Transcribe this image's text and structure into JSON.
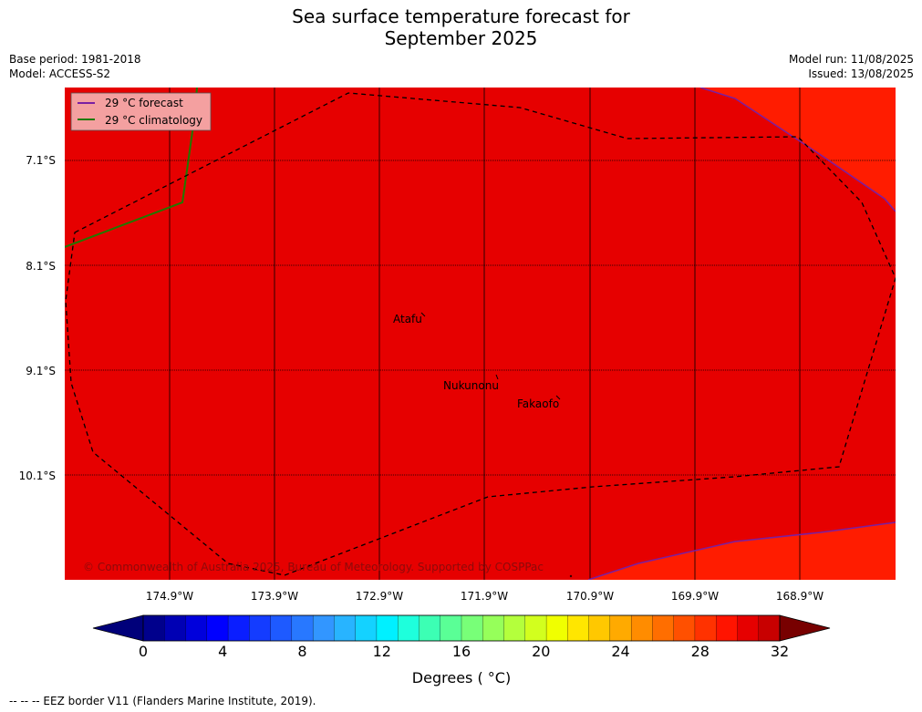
{
  "title": {
    "line1": "Sea surface temperature forecast for",
    "line2": "September 2025"
  },
  "meta": {
    "base_period": "Base period: 1981-2018",
    "model": "Model: ACCESS-S2",
    "model_run": "Model run: 11/08/2025",
    "issued": "Issued: 13/08/2025"
  },
  "legend": {
    "forecast": "29 °C  forecast",
    "climatology": "29 °C  climatology"
  },
  "colors": {
    "sea_main": "#e60000",
    "sea_warm": "#ff1c00",
    "forecast_line": "#7a1fa2",
    "climatology_line": "#1f7a00",
    "legend_bg": "#f4a0a0"
  },
  "map": {
    "lat_labels": [
      "7.1°S",
      "8.1°S",
      "9.1°S",
      "10.1°S"
    ],
    "lon_labels": [
      "174.9°W",
      "173.9°W",
      "172.9°W",
      "171.9°W",
      "170.9°W",
      "169.9°W",
      "168.9°W"
    ],
    "places": [
      "Atafu",
      "Nukunonu",
      "Fakaofo"
    ],
    "copyright": "© Commonwealth of Australia 2025, Bureau of Meteorology. Supported by COSPPac"
  },
  "colorbar": {
    "ticks": [
      "0",
      "4",
      "8",
      "12",
      "16",
      "20",
      "24",
      "28",
      "32"
    ],
    "label": "Degrees ( °C)",
    "colors": [
      "#00008c",
      "#0000b4",
      "#0000dc",
      "#0000ff",
      "#0a1eff",
      "#143cff",
      "#1e5aff",
      "#2878ff",
      "#3296ff",
      "#28b4ff",
      "#14d2ff",
      "#00f0ff",
      "#1effdc",
      "#3cffb4",
      "#5aff96",
      "#78ff78",
      "#96ff5a",
      "#b4ff3c",
      "#d2ff1e",
      "#f0ff00",
      "#ffe600",
      "#ffc800",
      "#ffaa00",
      "#ff8c00",
      "#ff6e00",
      "#ff5000",
      "#ff3200",
      "#ff1400",
      "#e60000",
      "#c80000"
    ]
  },
  "footer": "--  --  -- EEZ border V11 (Flanders Marine Institute, 2019)."
}
